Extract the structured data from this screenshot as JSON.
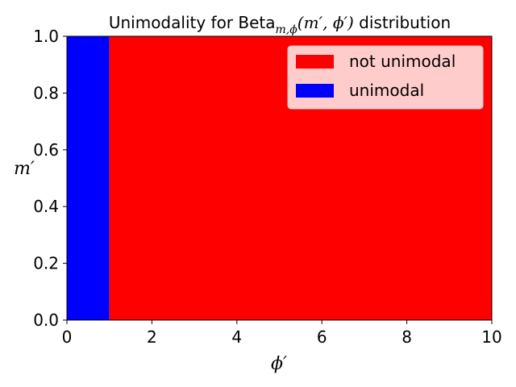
{
  "chart_data": {
    "type": "heatmap",
    "title": {
      "prefix": "Unimodality for Beta",
      "subscript": "m,ϕ",
      "args": "(m′, ϕ′)",
      "suffix": " distribution"
    },
    "xlabel": "ϕ′",
    "ylabel": "m′",
    "xlim": [
      0,
      10
    ],
    "ylim": [
      0,
      1
    ],
    "xticks": [
      0,
      2,
      4,
      6,
      8,
      10
    ],
    "xtick_labels": [
      "0",
      "2",
      "4",
      "6",
      "8",
      "10"
    ],
    "yticks": [
      0,
      0.2,
      0.4,
      0.6,
      0.8,
      1.0
    ],
    "ytick_labels": [
      "0.0",
      "0.2",
      "0.4",
      "0.6",
      "0.8",
      "1.0"
    ],
    "regions": [
      {
        "name": "unimodal",
        "x_range": [
          0,
          1
        ],
        "y_range": [
          0,
          1
        ],
        "color": "#0000ff"
      },
      {
        "name": "not unimodal",
        "x_range": [
          1,
          10
        ],
        "y_range": [
          0,
          1
        ],
        "color": "#ff0000"
      }
    ],
    "legend": {
      "placement": "top-right",
      "entries": [
        {
          "label": "not unimodal",
          "color": "#ff0000"
        },
        {
          "label": "unimodal",
          "color": "#0000ff"
        }
      ]
    }
  }
}
